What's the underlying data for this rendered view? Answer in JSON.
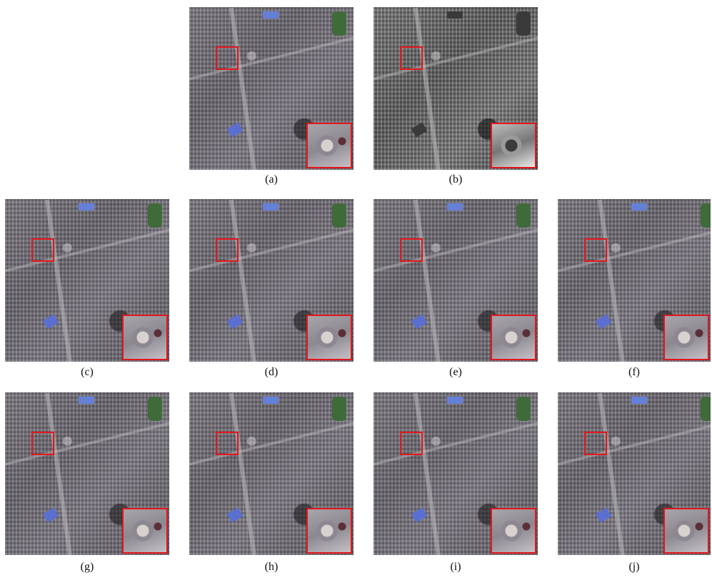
{
  "figure": {
    "panels": [
      {
        "id": "a",
        "label": "(a)",
        "style": "color"
      },
      {
        "id": "b",
        "label": "(b)",
        "style": "gray"
      },
      {
        "id": "c",
        "label": "(c)",
        "style": "color"
      },
      {
        "id": "d",
        "label": "(d)",
        "style": "color"
      },
      {
        "id": "e",
        "label": "(e)",
        "style": "color"
      },
      {
        "id": "f",
        "label": "(f)",
        "style": "color"
      },
      {
        "id": "g",
        "label": "(g)",
        "style": "color"
      },
      {
        "id": "h",
        "label": "(h)",
        "style": "color"
      },
      {
        "id": "i",
        "label": "(i)",
        "style": "color"
      },
      {
        "id": "j",
        "label": "(j)",
        "style": "color"
      }
    ],
    "highlight_color": "#e3161b"
  }
}
